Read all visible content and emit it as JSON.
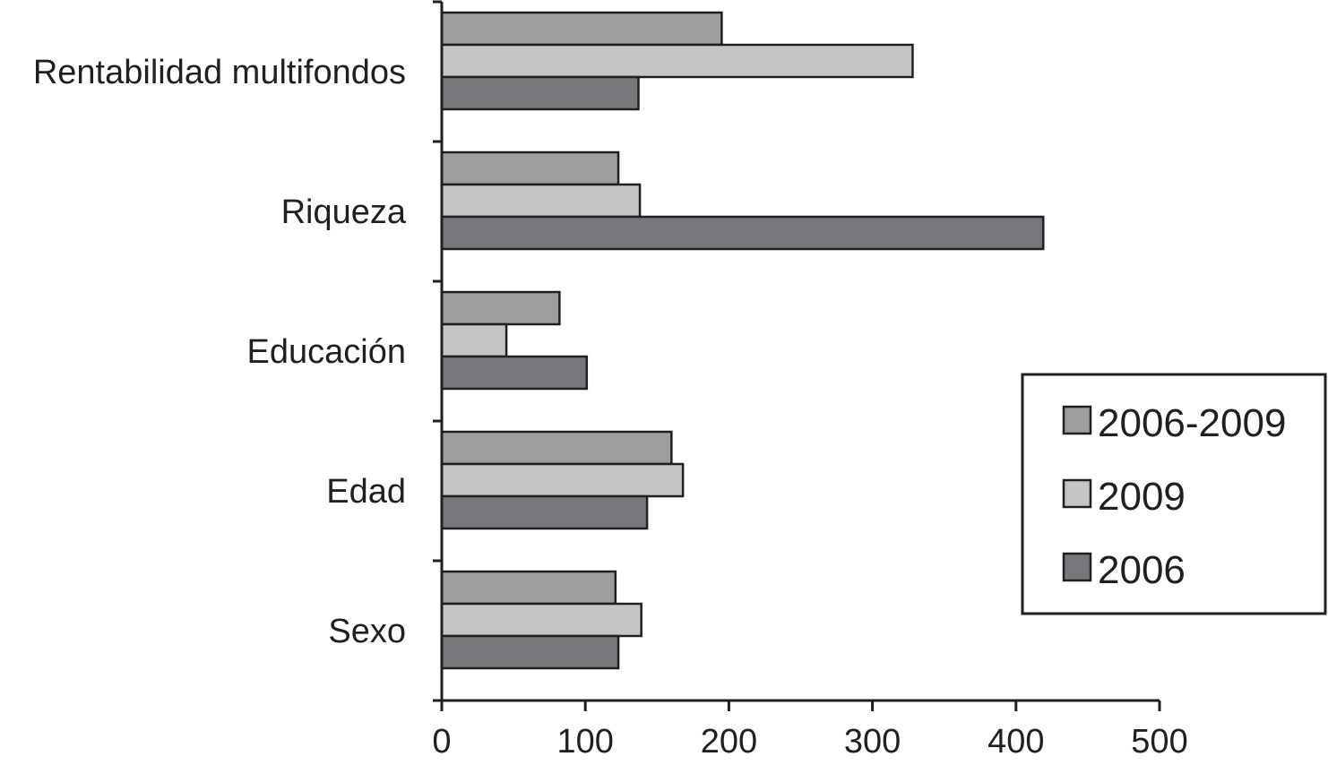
{
  "chart_data": {
    "type": "bar",
    "orientation": "horizontal",
    "categories": [
      "Rentabilidad multifondos",
      "Riqueza",
      "Educación",
      "Edad",
      "Sexo"
    ],
    "series": [
      {
        "name": "2006-2009",
        "color": "#9b9d9f",
        "values": [
          195,
          123,
          82,
          160,
          121
        ]
      },
      {
        "name": "2009",
        "color": "#c4c5c7",
        "values": [
          328,
          138,
          45,
          168,
          139
        ]
      },
      {
        "name": "2006",
        "color": "#76777a",
        "values": [
          137,
          419,
          101,
          143,
          123
        ]
      }
    ],
    "xticks": [
      "0",
      "100",
      "200",
      "300",
      "400",
      "500"
    ],
    "xlim": [
      0,
      500
    ],
    "title": "",
    "xlabel": "",
    "ylabel": "",
    "grid": false,
    "legend": {
      "position": "right",
      "entries": [
        "2006-2009",
        "2009",
        "2006"
      ]
    }
  }
}
